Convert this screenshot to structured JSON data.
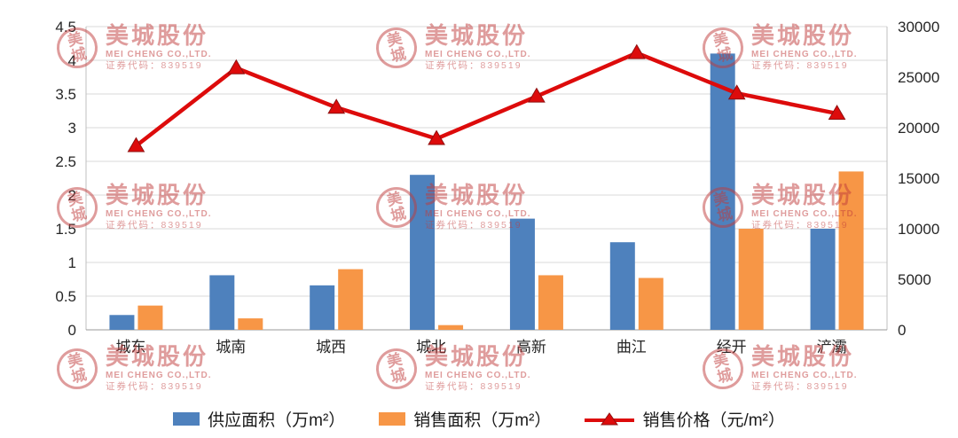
{
  "watermark": {
    "seal_top": "美",
    "seal_bottom": "城",
    "company_cn": "美城股份",
    "company_en": "MEI CHENG CO.,LTD.",
    "code": "证券代码：839519",
    "color": "#c03b3b"
  },
  "chart_data": {
    "type": "bar+line",
    "title": "",
    "categories": [
      "城东",
      "城南",
      "城西",
      "城北",
      "高新",
      "曲江",
      "经开",
      "浐灞"
    ],
    "series": [
      {
        "name": "供应面积（万m²）",
        "type": "bar",
        "axis": "left",
        "color": "#4e81bd",
        "values": [
          0.22,
          0.81,
          0.66,
          2.3,
          1.65,
          1.3,
          4.1,
          1.5
        ]
      },
      {
        "name": "销售面积（万m²）",
        "type": "bar",
        "axis": "left",
        "color": "#f79646",
        "values": [
          0.36,
          0.17,
          0.9,
          0.07,
          0.81,
          0.77,
          1.5,
          2.35
        ]
      },
      {
        "name": "销售价格（元/m²）",
        "type": "line",
        "axis": "right",
        "color": "#dd0b0b",
        "values": [
          18200,
          25900,
          22000,
          18900,
          23100,
          27400,
          23400,
          21400
        ]
      }
    ],
    "left_axis": {
      "min": 0,
      "max": 4.5,
      "step": 0.5,
      "ticks": [
        "0",
        "0.5",
        "1",
        "1.5",
        "2",
        "2.5",
        "3",
        "3.5",
        "4",
        "4.5"
      ]
    },
    "right_axis": {
      "min": 0,
      "max": 30000,
      "step": 5000,
      "ticks": [
        "0",
        "5000",
        "10000",
        "15000",
        "20000",
        "25000",
        "30000"
      ]
    },
    "grid": true,
    "legend_position": "bottom"
  }
}
